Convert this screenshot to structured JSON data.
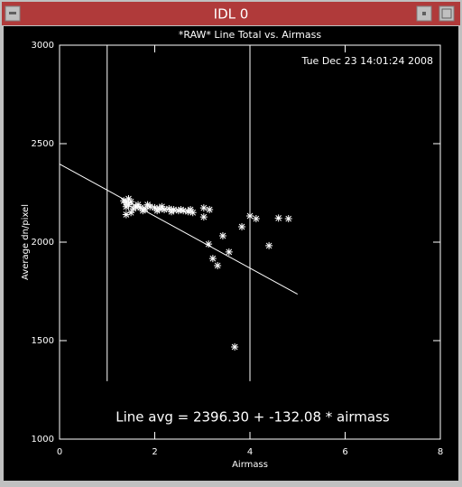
{
  "window_title": "IDL 0",
  "chart_data": {
    "type": "scatter",
    "title": "*RAW* Line Total vs. Airmass",
    "timestamp": "Tue Dec 23 14:01:24 2008",
    "x_label": "Airmass",
    "y_label": "Average dn/pixel",
    "annotation": "Line avg = 2396.30 + -132.08 * airmass",
    "xlim": [
      0,
      8
    ],
    "xticks": [
      0,
      2,
      4,
      6,
      8
    ],
    "ylim": [
      1000,
      3000
    ],
    "yticks": [
      1000,
      1500,
      2000,
      2500,
      3000
    ],
    "color": "#ffffff",
    "series": [
      {
        "name": "data",
        "x": [
          1.35,
          1.4,
          1.4,
          1.45,
          1.5,
          1.4,
          1.55,
          1.6,
          1.7,
          1.8,
          1.9,
          2.0,
          2.1,
          2.2,
          2.3,
          2.4,
          2.5,
          2.6,
          2.7,
          2.8,
          1.45,
          1.5,
          1.65,
          1.75,
          1.85,
          2.05,
          2.15,
          2.35,
          2.55,
          2.75,
          3.03,
          3.03,
          3.15,
          3.13,
          3.22,
          3.32,
          3.43,
          3.56,
          3.68,
          3.83,
          4.0,
          4.13,
          4.4,
          4.6,
          4.81
        ],
        "values": [
          2210,
          2200,
          2180,
          2190,
          2150,
          2140,
          2170,
          2180,
          2175,
          2170,
          2180,
          2175,
          2170,
          2165,
          2170,
          2165,
          2160,
          2160,
          2155,
          2150,
          2220,
          2205,
          2190,
          2160,
          2190,
          2160,
          2180,
          2155,
          2165,
          2165,
          2174,
          2128,
          2165,
          1990,
          1917,
          1881,
          2032,
          1950,
          1468,
          2078,
          2133,
          2119,
          1982,
          2122,
          2119
        ]
      },
      {
        "name": "fit",
        "x": [
          0,
          5
        ],
        "values": [
          2396.3,
          1735.9
        ]
      },
      {
        "name": "limits",
        "x": [
          1,
          4
        ],
        "ymin": 1294,
        "ymax": 3000
      }
    ]
  }
}
